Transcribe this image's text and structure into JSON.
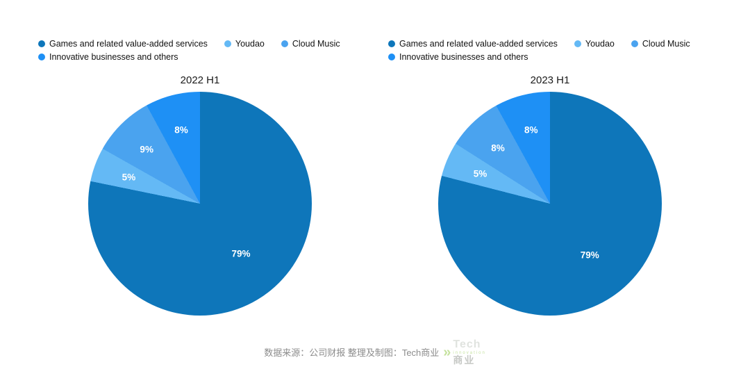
{
  "page": {
    "background": "#ffffff"
  },
  "legend": {
    "items": [
      {
        "label": "Games and related value-added services",
        "color": "#0e76ba"
      },
      {
        "label": "Youdao",
        "color": "#64b9f5"
      },
      {
        "label": "Cloud Music",
        "color": "#4aa3ef"
      },
      {
        "label": "Innovative businesses and others",
        "color": "#1e90f5"
      }
    ]
  },
  "footer": {
    "source_text": "数据来源：公司财报 整理及制图：Tech商业",
    "watermark": {
      "arrow": "»",
      "line1": "Tech",
      "line2": "innovation",
      "line3": "商业"
    }
  },
  "chart_data": [
    {
      "type": "pie",
      "title": "2022 H1",
      "labels": [
        "Games and related value-added services",
        "Youdao",
        "Cloud Music",
        "Innovative businesses and others"
      ],
      "values": [
        79,
        5,
        9,
        8
      ],
      "value_labels": [
        "79%",
        "5%",
        "9%",
        "8%"
      ],
      "colors": [
        "#0e76ba",
        "#64b9f5",
        "#4aa3ef",
        "#1e90f5"
      ],
      "start_angle_deg": 0,
      "direction": "clockwise",
      "legend_position": "top"
    },
    {
      "type": "pie",
      "title": "2023 H1",
      "labels": [
        "Games and related value-added services",
        "Youdao",
        "Cloud Music",
        "Innovative businesses and others"
      ],
      "values": [
        79,
        5,
        8,
        8
      ],
      "value_labels": [
        "79%",
        "5%",
        "8%",
        "8%"
      ],
      "colors": [
        "#0e76ba",
        "#64b9f5",
        "#4aa3ef",
        "#1e90f5"
      ],
      "start_angle_deg": 0,
      "direction": "clockwise",
      "legend_position": "top"
    }
  ]
}
